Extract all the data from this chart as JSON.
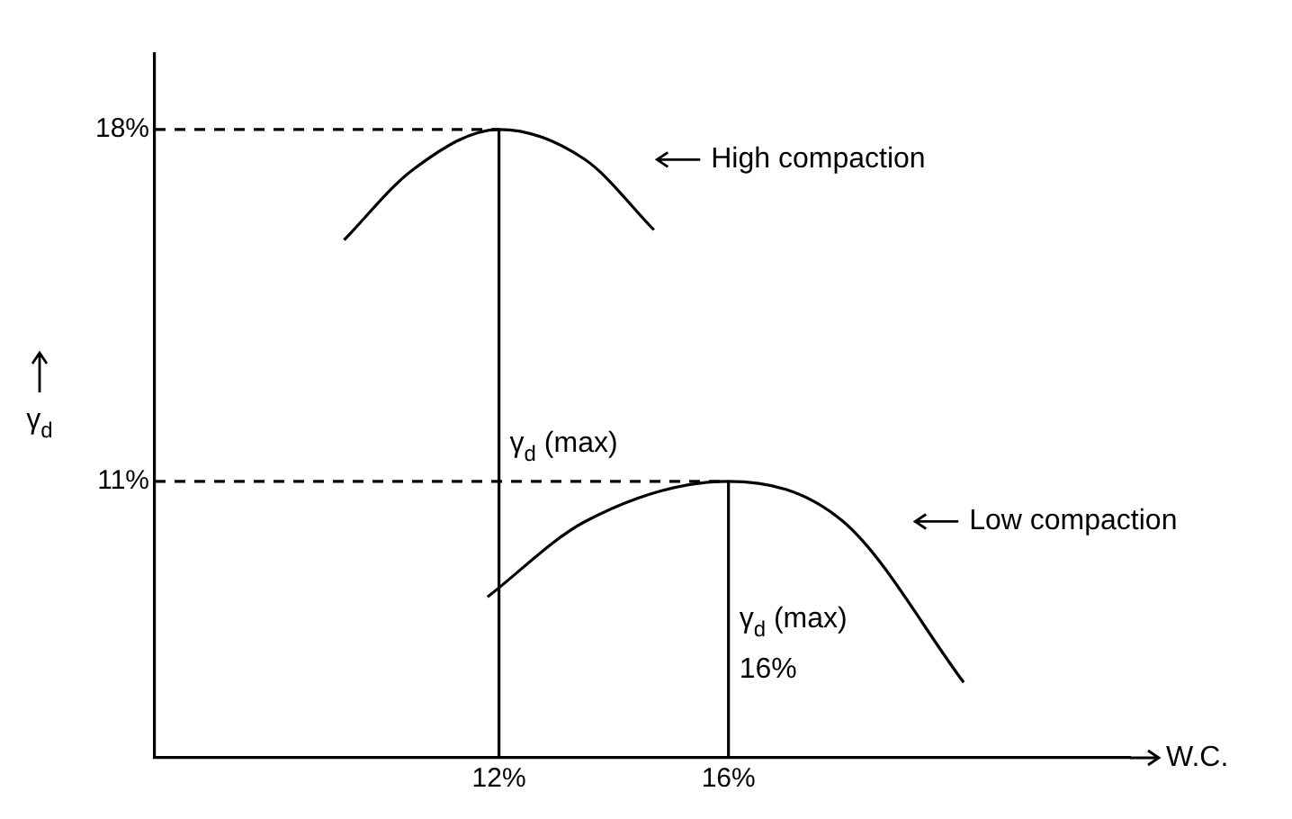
{
  "chart_data": {
    "type": "line",
    "xlabel": "W.C.",
    "ylabel": "γ$_{d}$",
    "xlim": [
      6,
      23
    ],
    "ylim": [
      5.5,
      19.5
    ],
    "xticks": [
      {
        "value": 12,
        "label": "12%"
      },
      {
        "value": 16,
        "label": "16%"
      }
    ],
    "yticks": [
      {
        "value": 11,
        "label": "11%"
      },
      {
        "value": 18,
        "label": "18%"
      }
    ],
    "grid": false,
    "legend": "right",
    "marker": "none",
    "series": [
      {
        "name": "High compaction",
        "color": "#000000",
        "x": [
          9.3,
          10.5,
          12,
          13.5,
          14.7
        ],
        "values": [
          15.8,
          17.2,
          18,
          17.4,
          16
        ]
      },
      {
        "name": "Low compaction",
        "color": "#000000",
        "x": [
          11.8,
          13.5,
          16,
          18,
          20.1
        ],
        "values": [
          8.7,
          10.2,
          11,
          10.2,
          7
        ]
      },
      {
        "color": "#000000",
        "x": [
          6,
          12
        ],
        "values": [
          18,
          18
        ],
        "line_style": "dashed"
      },
      {
        "color": "#000000",
        "x": [
          6,
          16
        ],
        "values": [
          11,
          11
        ],
        "line_style": "dashed"
      },
      {
        "color": "#000000",
        "x": [
          12,
          12
        ],
        "values": [
          5.5,
          18
        ]
      },
      {
        "color": "#000000",
        "x": [
          16,
          16
        ],
        "values": [
          5.5,
          11
        ]
      }
    ],
    "annotations": [
      "γ$_{d}$ (max)",
      "γ$_{d}$ (max)",
      "16%"
    ]
  }
}
